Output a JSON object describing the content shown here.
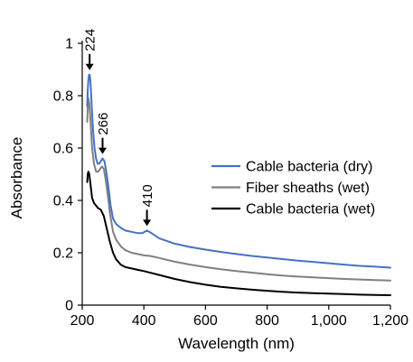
{
  "chart_data": {
    "type": "line",
    "xlabel": "Wavelength (nm)",
    "ylabel": "Absorbance",
    "xlim": [
      200,
      1200
    ],
    "ylim": [
      0,
      1
    ],
    "x_ticks": [
      200,
      400,
      600,
      800,
      1000,
      1200
    ],
    "x_tick_labels": [
      "200",
      "400",
      "600",
      "800",
      "1,000",
      "1,200"
    ],
    "y_ticks": [
      0,
      0.2,
      0.4,
      0.6,
      0.8,
      1
    ],
    "y_tick_labels": [
      "0",
      "0.2",
      "0.4",
      "0.6",
      "0.8",
      "1"
    ],
    "grid": false,
    "legend_position": "center-right",
    "series": [
      {
        "name": "Cable bacteria (dry)",
        "color": "#4472C4",
        "points": [
          [
            216,
            0.76
          ],
          [
            218,
            0.82
          ],
          [
            220,
            0.86
          ],
          [
            222,
            0.88
          ],
          [
            224,
            0.88
          ],
          [
            227,
            0.85
          ],
          [
            230,
            0.78
          ],
          [
            235,
            0.67
          ],
          [
            240,
            0.6
          ],
          [
            245,
            0.56
          ],
          [
            250,
            0.54
          ],
          [
            255,
            0.54
          ],
          [
            260,
            0.55
          ],
          [
            266,
            0.56
          ],
          [
            272,
            0.55
          ],
          [
            278,
            0.51
          ],
          [
            285,
            0.45
          ],
          [
            292,
            0.38
          ],
          [
            300,
            0.33
          ],
          [
            310,
            0.31
          ],
          [
            325,
            0.295
          ],
          [
            340,
            0.285
          ],
          [
            360,
            0.28
          ],
          [
            380,
            0.275
          ],
          [
            395,
            0.275
          ],
          [
            410,
            0.285
          ],
          [
            425,
            0.275
          ],
          [
            450,
            0.255
          ],
          [
            500,
            0.235
          ],
          [
            550,
            0.222
          ],
          [
            600,
            0.212
          ],
          [
            650,
            0.203
          ],
          [
            700,
            0.195
          ],
          [
            750,
            0.188
          ],
          [
            800,
            0.182
          ],
          [
            850,
            0.176
          ],
          [
            900,
            0.17
          ],
          [
            950,
            0.165
          ],
          [
            1000,
            0.16
          ],
          [
            1050,
            0.155
          ],
          [
            1100,
            0.15
          ],
          [
            1150,
            0.147
          ],
          [
            1200,
            0.143
          ]
        ]
      },
      {
        "name": "Fiber sheaths (wet)",
        "color": "#808080",
        "points": [
          [
            216,
            0.7
          ],
          [
            218,
            0.76
          ],
          [
            220,
            0.79
          ],
          [
            223,
            0.77
          ],
          [
            227,
            0.7
          ],
          [
            232,
            0.6
          ],
          [
            238,
            0.54
          ],
          [
            245,
            0.51
          ],
          [
            252,
            0.51
          ],
          [
            258,
            0.52
          ],
          [
            264,
            0.53
          ],
          [
            270,
            0.52
          ],
          [
            276,
            0.48
          ],
          [
            283,
            0.42
          ],
          [
            290,
            0.35
          ],
          [
            300,
            0.28
          ],
          [
            310,
            0.25
          ],
          [
            325,
            0.225
          ],
          [
            340,
            0.21
          ],
          [
            360,
            0.2
          ],
          [
            380,
            0.195
          ],
          [
            400,
            0.19
          ],
          [
            420,
            0.188
          ],
          [
            450,
            0.18
          ],
          [
            500,
            0.166
          ],
          [
            550,
            0.155
          ],
          [
            600,
            0.145
          ],
          [
            650,
            0.137
          ],
          [
            700,
            0.13
          ],
          [
            750,
            0.124
          ],
          [
            800,
            0.118
          ],
          [
            850,
            0.113
          ],
          [
            900,
            0.109
          ],
          [
            950,
            0.106
          ],
          [
            1000,
            0.103
          ],
          [
            1050,
            0.1
          ],
          [
            1100,
            0.098
          ],
          [
            1150,
            0.096
          ],
          [
            1200,
            0.094
          ]
        ]
      },
      {
        "name": "Cable bacteria (wet)",
        "color": "#000000",
        "points": [
          [
            216,
            0.47
          ],
          [
            218,
            0.5
          ],
          [
            220,
            0.51
          ],
          [
            223,
            0.5
          ],
          [
            227,
            0.46
          ],
          [
            232,
            0.41
          ],
          [
            238,
            0.39
          ],
          [
            245,
            0.38
          ],
          [
            252,
            0.37
          ],
          [
            260,
            0.365
          ],
          [
            270,
            0.34
          ],
          [
            280,
            0.29
          ],
          [
            290,
            0.24
          ],
          [
            300,
            0.2
          ],
          [
            310,
            0.175
          ],
          [
            325,
            0.155
          ],
          [
            340,
            0.145
          ],
          [
            360,
            0.14
          ],
          [
            380,
            0.135
          ],
          [
            400,
            0.13
          ],
          [
            450,
            0.115
          ],
          [
            500,
            0.1
          ],
          [
            550,
            0.088
          ],
          [
            600,
            0.078
          ],
          [
            650,
            0.07
          ],
          [
            700,
            0.064
          ],
          [
            750,
            0.059
          ],
          [
            800,
            0.055
          ],
          [
            850,
            0.051
          ],
          [
            900,
            0.048
          ],
          [
            950,
            0.046
          ],
          [
            1000,
            0.044
          ],
          [
            1050,
            0.042
          ],
          [
            1100,
            0.04
          ],
          [
            1150,
            0.039
          ],
          [
            1200,
            0.038
          ]
        ]
      }
    ],
    "annotations": [
      {
        "text": "224",
        "x": 224,
        "y": 0.88,
        "label_rotated": true
      },
      {
        "text": "266",
        "x": 266,
        "y": 0.56,
        "label_rotated": true
      },
      {
        "text": "410",
        "x": 410,
        "y": 0.285,
        "label_rotated": true
      }
    ]
  }
}
